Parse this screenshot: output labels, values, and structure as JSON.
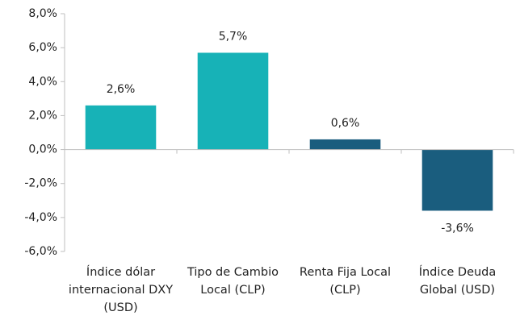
{
  "chart_data": {
    "type": "bar",
    "categories": [
      "Índice dólar internacional DXY (USD)",
      "Tipo de Cambio Local (CLP)",
      "Renta Fija Local (CLP)",
      "Índice Deuda Global (USD)"
    ],
    "values": [
      2.6,
      5.7,
      0.6,
      -3.6
    ],
    "value_labels": [
      "2,6%",
      "5,7%",
      "0,6%",
      "-3,6%"
    ],
    "colors": [
      "#17b2b7",
      "#17b2b7",
      "#1a5d7e",
      "#1a5d7e"
    ],
    "ylim": [
      -6,
      8
    ],
    "yticks": [
      {
        "value": -6,
        "label": "-6,0%"
      },
      {
        "value": -4,
        "label": "-4,0%"
      },
      {
        "value": -2,
        "label": "-2,0%"
      },
      {
        "value": 0,
        "label": "0,0%"
      },
      {
        "value": 2,
        "label": "2,0%"
      },
      {
        "value": 4,
        "label": "4,0%"
      },
      {
        "value": 6,
        "label": "6,0%"
      },
      {
        "value": 8,
        "label": "8,0%"
      }
    ]
  }
}
